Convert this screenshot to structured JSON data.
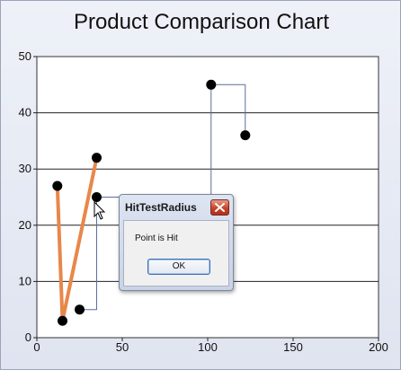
{
  "window": {
    "title": "Product Comparison Chart"
  },
  "chart_data": {
    "type": "line",
    "title": "Product Comparison Chart",
    "xlim": [
      0,
      200
    ],
    "ylim": [
      0,
      50
    ],
    "x_ticks": [
      0,
      50,
      100,
      150,
      200
    ],
    "y_ticks": [
      0,
      10,
      20,
      30,
      40,
      50
    ],
    "grid": "horizontal",
    "series": [
      {
        "style": "straight",
        "color": "#e8874a",
        "points": [
          [
            12,
            27
          ],
          [
            15,
            3
          ],
          [
            35,
            32
          ]
        ]
      },
      {
        "style": "step",
        "color": "#5a6f9a",
        "points": [
          [
            25,
            5
          ],
          [
            35,
            25
          ],
          [
            102,
            45
          ],
          [
            122,
            36
          ]
        ]
      }
    ],
    "marker_color": "#000000"
  },
  "dialog": {
    "title": "HitTestRadius",
    "message": "Point is Hit",
    "ok_label": "OK",
    "close_icon": "close-x-icon"
  },
  "cursor": {
    "icon": "arrow-pointer-icon"
  }
}
